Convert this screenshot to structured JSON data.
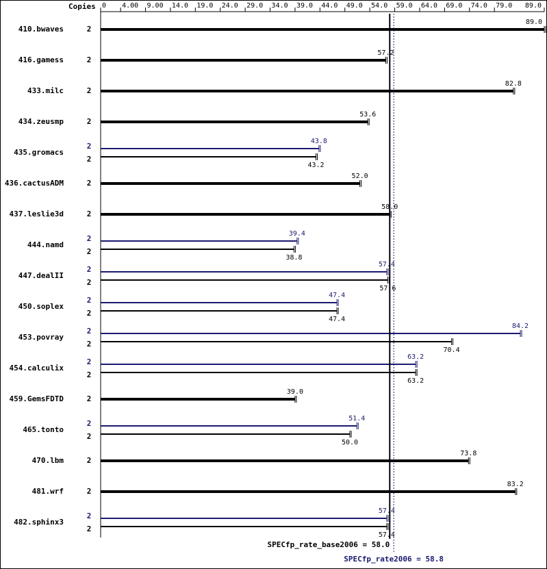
{
  "chart_data": {
    "type": "bar",
    "x_header": "Copies",
    "categories": [
      "410.bwaves",
      "416.gamess",
      "433.milc",
      "434.zeusmp",
      "435.gromacs",
      "436.cactusADM",
      "437.leslie3d",
      "444.namd",
      "447.dealII",
      "450.soplex",
      "453.povray",
      "454.calculix",
      "459.GemsFDTD",
      "465.tonto",
      "470.lbm",
      "481.wrf",
      "482.sphinx3"
    ],
    "series": [
      {
        "color": "#000000",
        "copies": [
          2,
          2,
          2,
          2,
          2,
          2,
          2,
          2,
          2,
          2,
          2,
          2,
          2,
          2,
          2,
          2,
          2
        ],
        "values": [
          89.0,
          57.2,
          82.8,
          53.6,
          43.2,
          52.0,
          58.0,
          38.8,
          57.6,
          47.4,
          70.4,
          63.2,
          39.0,
          50.0,
          73.8,
          83.2,
          57.4
        ],
        "value_labels": [
          "89.0",
          "57.2",
          "82.8",
          "53.6",
          "43.2",
          "52.0",
          "58.0",
          "38.8",
          "57.6",
          "47.4",
          "70.4",
          "63.2",
          "39.0",
          "50.0",
          "73.8",
          "83.2",
          "57.4"
        ]
      },
      {
        "color": "#191970",
        "copies": [
          null,
          null,
          null,
          null,
          2,
          null,
          null,
          2,
          2,
          2,
          2,
          2,
          null,
          2,
          null,
          null,
          2
        ],
        "values": [
          null,
          null,
          null,
          null,
          43.8,
          null,
          null,
          39.4,
          57.4,
          47.4,
          84.2,
          63.2,
          null,
          51.4,
          null,
          null,
          57.4
        ],
        "value_labels": [
          null,
          null,
          null,
          null,
          "43.8",
          null,
          null,
          "39.4",
          "57.4",
          "47.4",
          "84.2",
          "63.2",
          null,
          "51.4",
          null,
          null,
          "57.4"
        ]
      }
    ],
    "xlim": [
      0,
      89
    ],
    "xticks": [
      0,
      {
        "value": 4,
        "label": "4.00"
      },
      {
        "value": 9,
        "label": "9.00"
      },
      {
        "value": 14,
        "label": "14.0"
      },
      {
        "value": 19,
        "label": "19.0"
      },
      {
        "value": 24,
        "label": "24.0"
      },
      {
        "value": 29,
        "label": "29.0"
      },
      {
        "value": 34,
        "label": "34.0"
      },
      {
        "value": 39,
        "label": "39.0"
      },
      {
        "value": 44,
        "label": "44.0"
      },
      {
        "value": 49,
        "label": "49.0"
      },
      {
        "value": 54,
        "label": "54.0"
      },
      {
        "value": 59,
        "label": "59.0"
      },
      {
        "value": 64,
        "label": "64.0"
      },
      {
        "value": 69,
        "label": "69.0"
      },
      {
        "value": 74,
        "label": "74.0"
      },
      {
        "value": 79,
        "label": "79.0"
      },
      {
        "value": 89,
        "label": "89.0"
      }
    ],
    "reference_lines": [
      {
        "label": "SPECfp_rate_base2006 = 58.0",
        "value": 58.0,
        "color": "#000000",
        "dashed": false
      },
      {
        "label": "SPECfp_rate2006 = 58.8",
        "value": 58.8,
        "color": "#191970",
        "dashed": true
      }
    ]
  }
}
